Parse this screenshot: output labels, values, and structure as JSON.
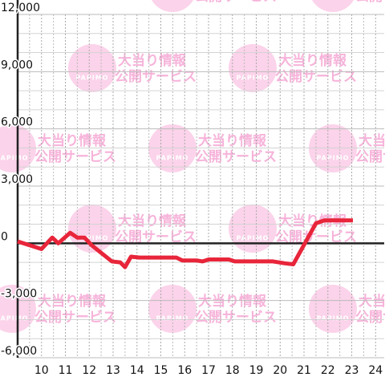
{
  "watermark": {
    "brand": "PAPIMO",
    "lines": [
      "大当り情報",
      "公開サービス"
    ]
  },
  "chart_data": {
    "type": "line",
    "x": [
      9,
      9.87,
      10,
      10.45,
      10.7,
      11.2,
      11.5,
      11.8,
      12.1,
      12.45,
      12.95,
      13.3,
      13.5,
      13.75,
      14.1,
      15.65,
      15.9,
      16.5,
      16.75,
      17,
      17.85,
      18.1,
      19.7,
      20.2,
      20.55,
      21.5,
      21.85,
      23.05
    ],
    "series": [
      {
        "color": "#e8253a",
        "values": [
          100,
          -250,
          -300,
          300,
          0,
          550,
          300,
          300,
          -100,
          -450,
          -950,
          -1000,
          -1250,
          -700,
          -750,
          -750,
          -900,
          -900,
          -950,
          -850,
          -850,
          -950,
          -950,
          -1050,
          -1100,
          1050,
          1200,
          1200
        ]
      }
    ],
    "xlim": [
      9,
      24.36
    ],
    "xticks": [
      10,
      11,
      12,
      13,
      14,
      15,
      16,
      17,
      18,
      19,
      20,
      21,
      22,
      23,
      24
    ],
    "x_minor_ticks": [
      9.5,
      10.5,
      11.5,
      12.5,
      13.5,
      14.5,
      15.5,
      16.5,
      17.5,
      18.5,
      19.5,
      20.5,
      21.5,
      22.5,
      23.5
    ],
    "ylim": [
      -6000,
      12000
    ],
    "yticks": [
      {
        "value": 12000,
        "label": "12,000"
      },
      {
        "value": 9000,
        "label": "9,000"
      },
      {
        "value": 6000,
        "label": "6,000"
      },
      {
        "value": 3000,
        "label": "3,000"
      },
      0,
      {
        "value": -3000,
        "label": "-3,000"
      },
      {
        "value": -6000,
        "label": "-6,000"
      }
    ],
    "y_minor_ticks": [
      11000,
      10000,
      8000,
      7000,
      5000,
      4000,
      2000,
      1000,
      -1000,
      -2000,
      -4000,
      -5000
    ],
    "grid": true
  }
}
